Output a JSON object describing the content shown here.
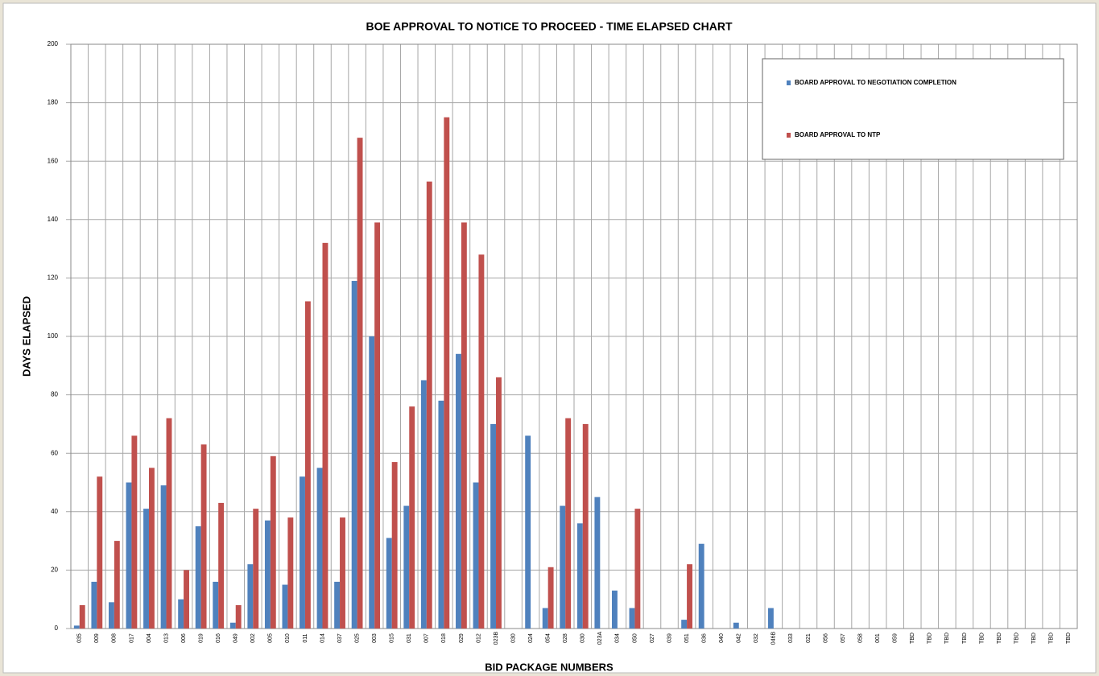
{
  "chart_data": {
    "type": "bar",
    "title": "BOE APPROVAL TO NOTICE TO PROCEED - TIME ELAPSED CHART",
    "x_label": "BID PACKAGE NUMBERS",
    "y_label": "DAYS ELAPSED",
    "categories": [
      "035",
      "009",
      "008",
      "017",
      "004",
      "013",
      "006",
      "019",
      "016",
      "049",
      "002",
      "005",
      "010",
      "011",
      "014",
      "037",
      "025",
      "003",
      "015",
      "031",
      "007",
      "018",
      "029",
      "012",
      "023B",
      "030",
      "024",
      "054",
      "028",
      "030",
      "023A",
      "034",
      "050",
      "027",
      "039",
      "051",
      "036",
      "040",
      "042",
      "032",
      "046B",
      "033",
      "021",
      "056",
      "057",
      "058",
      "001",
      "059",
      "TBD",
      "TBD",
      "TBD",
      "TBD",
      "TBD",
      "TBD",
      "TBD",
      "TBD",
      "TBD",
      "TBD"
    ],
    "series": [
      {
        "name": "BOARD APPROVAL TO NEGOTIATION COMPLETION",
        "color": "#4f81bd",
        "values": [
          1,
          16,
          9,
          50,
          41,
          49,
          10,
          35,
          16,
          2,
          22,
          37,
          15,
          52,
          55,
          16,
          119,
          100,
          31,
          42,
          85,
          78,
          94,
          50,
          70,
          0,
          66,
          7,
          42,
          36,
          45,
          13,
          7,
          0,
          0,
          3,
          29,
          0,
          2,
          0,
          7,
          0,
          0,
          0,
          0,
          0,
          0,
          0,
          0,
          0,
          0,
          0,
          0,
          0,
          0,
          0,
          0,
          0
        ]
      },
      {
        "name": "BOARD APPROVAL TO NTP",
        "color": "#c0504d",
        "values": [
          8,
          52,
          30,
          66,
          55,
          72,
          20,
          63,
          43,
          8,
          41,
          59,
          38,
          112,
          132,
          38,
          168,
          139,
          57,
          76,
          153,
          175,
          139,
          128,
          86,
          0,
          0,
          21,
          72,
          70,
          0,
          0,
          41,
          0,
          0,
          22,
          0,
          0,
          0,
          0,
          0,
          0,
          0,
          0,
          0,
          0,
          0,
          0,
          0,
          0,
          0,
          0,
          0,
          0,
          0,
          0,
          0,
          0
        ]
      }
    ],
    "ylim": [
      0,
      200
    ],
    "yticks": [
      0,
      20,
      40,
      60,
      80,
      100,
      120,
      140,
      160,
      180,
      200
    ],
    "grid": true,
    "legend": "top-right"
  }
}
